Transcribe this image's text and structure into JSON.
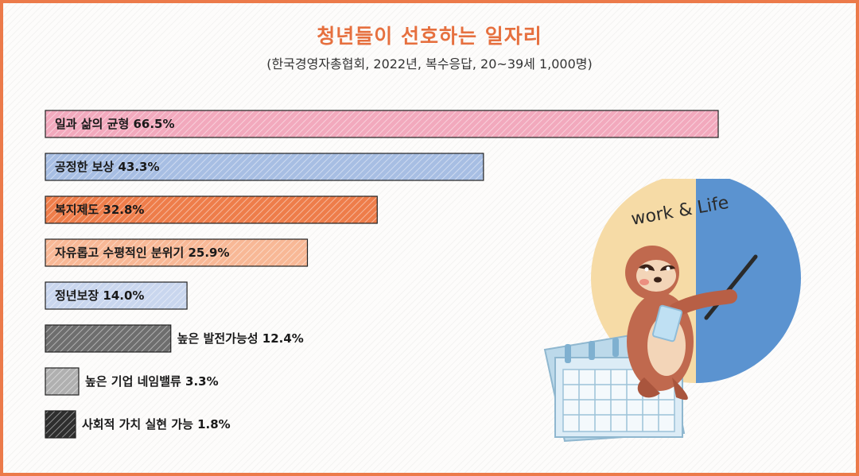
{
  "title": "청년들이 선호하는 일자리",
  "subtitle": "(한국경영자총협회, 2022년, 복수응답, 20~39세 1,000명)",
  "illustration": {
    "text": "work & Life",
    "subject": "sloth-pointing-at-pie-over-calendar"
  },
  "colors": {
    "accent": "#e6703f",
    "border": "#ec7a4a",
    "pie_left": "#f6dba6",
    "pie_right": "#5b93d0"
  },
  "chart_data": {
    "type": "bar",
    "orientation": "horizontal",
    "title": "청년들이 선호하는 일자리",
    "subtitle": "(한국경영자총협회, 2022년, 복수응답, 20~39세 1,000명)",
    "categories": [
      "일과 삶의 균형",
      "공정한 보상",
      "복지제도",
      "자유롭고 수평적인 분위기",
      "정년보장",
      "높은 발전가능성",
      "높은 기업 네임밸류",
      "사회적 가치 실현 가능"
    ],
    "values": [
      66.5,
      43.3,
      32.8,
      25.9,
      14.0,
      12.4,
      3.3,
      1.8
    ],
    "value_labels": [
      "66.5%",
      "43.3%",
      "32.8%",
      "25.9%",
      "14.0%",
      "12.4%",
      "3.3%",
      "1.8%"
    ],
    "bar_colors": [
      "#f2a9bd",
      "#a7bee3",
      "#ee7d4a",
      "#f8b896",
      "#c9d6ee",
      "#6e6e6e",
      "#b0b0b0",
      "#2e2e2e"
    ],
    "label_position": [
      "inside",
      "inside",
      "inside",
      "inside",
      "inside",
      "outside",
      "outside",
      "outside"
    ],
    "xlabel": "",
    "ylabel": "",
    "xlim": [
      0,
      66.5
    ],
    "grid": false,
    "legend": "none"
  }
}
